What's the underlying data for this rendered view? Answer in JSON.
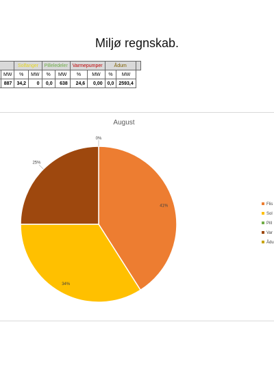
{
  "page_title": "Miljø regnskab.",
  "stats_table": {
    "groups": [
      {
        "label": "Solfanger",
        "cls": "sol"
      },
      {
        "label": "Pilleledeler",
        "cls": "pil"
      },
      {
        "label": "Varmepumper",
        "cls": "var"
      },
      {
        "label": "Ådum",
        "cls": "adu"
      },
      {
        "label": "",
        "cls": ""
      }
    ],
    "headers": [
      "MW",
      "%",
      "MW",
      "%",
      "MW",
      "%",
      "MW",
      "%",
      "MW"
    ],
    "values": [
      "887",
      "34,2",
      "0",
      "0,0",
      "638",
      "24,6",
      "0,00",
      "0,0",
      "2593,4"
    ]
  },
  "chart_data": {
    "type": "pie",
    "title": "August",
    "slices": [
      {
        "legend": "Flis",
        "value": 41,
        "label": "41%",
        "color": "#ed7d31"
      },
      {
        "legend": "Sol",
        "value": 34,
        "label": "34%",
        "color": "#ffc000"
      },
      {
        "legend": "Pill",
        "value": 0,
        "label": "",
        "color": "#70ad47"
      },
      {
        "legend": "Var",
        "value": 25,
        "label": "25%",
        "color": "#9e480e"
      },
      {
        "legend": "Ådu",
        "value": 0,
        "label": "0%",
        "color": "#c9a400"
      }
    ],
    "legend_position": "right"
  }
}
